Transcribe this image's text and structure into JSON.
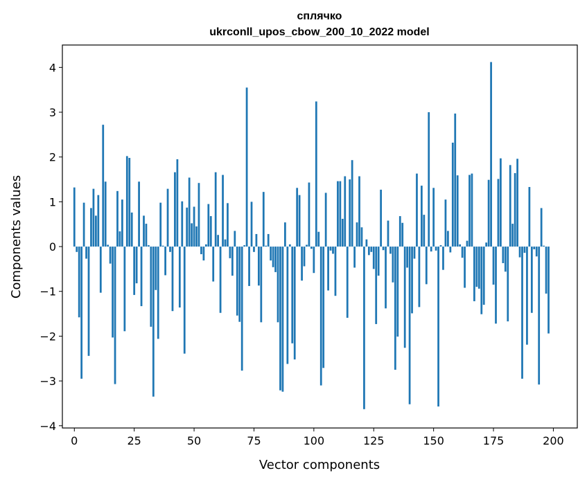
{
  "chart_data": {
    "type": "bar",
    "title": [
      "сплячко",
      "ukrconll_upos_cbow_200_10_2022 model"
    ],
    "xlabel": "Vector components",
    "ylabel": "Components values",
    "xlim": [
      -5,
      210
    ],
    "ylim": [
      -4.05,
      4.5
    ],
    "xticks": [
      0,
      25,
      50,
      75,
      100,
      125,
      150,
      175,
      200
    ],
    "yticks": [
      4,
      3,
      2,
      1,
      0,
      -1,
      -2,
      -3,
      -4
    ],
    "grid": false,
    "bar_color": "#1f77b4",
    "x_start": 0,
    "values": [
      1.32,
      -0.12,
      -1.58,
      -2.95,
      0.98,
      -0.27,
      -2.44,
      0.86,
      1.29,
      0.69,
      1.15,
      -1.03,
      2.72,
      1.45,
      0.04,
      -0.38,
      -2.03,
      -3.07,
      1.24,
      0.34,
      1.05,
      -1.89,
      2.02,
      1.98,
      0.76,
      -1.08,
      -0.82,
      1.45,
      -1.33,
      0.69,
      0.51,
      0.03,
      -1.79,
      -3.35,
      -0.97,
      -2.06,
      0.98,
      0.02,
      -0.64,
      1.29,
      -0.12,
      -1.44,
      1.66,
      1.95,
      -1.36,
      1.01,
      -2.39,
      0.87,
      1.54,
      0.52,
      0.89,
      0.45,
      1.42,
      -0.17,
      -0.31,
      0.05,
      0.95,
      0.68,
      -0.78,
      1.66,
      0.26,
      -1.48,
      1.6,
      0.16,
      0.97,
      -0.26,
      -0.65,
      0.35,
      -1.54,
      -1.68,
      -2.77,
      0.03,
      3.55,
      -0.88,
      1.0,
      -0.12,
      0.28,
      -0.87,
      -1.69,
      1.22,
      0.02,
      0.28,
      -0.31,
      -0.46,
      -0.57,
      -1.69,
      -3.21,
      -3.24,
      0.54,
      -2.62,
      0.05,
      -2.16,
      -2.52,
      1.31,
      1.15,
      -0.76,
      -0.44,
      0.04,
      1.43,
      -0.05,
      -0.59,
      3.24,
      0.33,
      -3.1,
      -2.71,
      1.2,
      -0.98,
      -0.09,
      -0.16,
      -1.1,
      1.46,
      1.46,
      0.62,
      1.57,
      -1.59,
      1.5,
      1.93,
      -0.47,
      0.54,
      1.57,
      0.43,
      -3.63,
      0.16,
      -0.19,
      -0.12,
      -0.5,
      -1.73,
      -0.65,
      1.27,
      -0.08,
      -1.38,
      0.58,
      -0.16,
      -0.8,
      -2.75,
      -2.01,
      0.68,
      0.53,
      -2.26,
      -0.47,
      -3.52,
      -1.49,
      -0.27,
      1.63,
      -1.35,
      1.36,
      0.71,
      -0.84,
      3.0,
      -0.11,
      1.31,
      -0.09,
      -3.57,
      0.03,
      -0.52,
      1.05,
      0.35,
      -0.13,
      2.32,
      2.97,
      1.59,
      0.05,
      -0.25,
      -0.92,
      0.13,
      1.6,
      1.63,
      -1.22,
      -0.9,
      -0.94,
      -1.51,
      -1.3,
      0.09,
      1.49,
      4.12,
      -0.85,
      -1.72,
      1.51,
      1.97,
      -0.37,
      -0.56,
      -1.67,
      1.82,
      0.51,
      1.64,
      1.96,
      -0.24,
      -2.95,
      -0.14,
      -2.19,
      1.33,
      -1.48,
      -0.06,
      -0.22,
      -3.08,
      0.86,
      0.02,
      -1.05,
      -1.94
    ]
  }
}
